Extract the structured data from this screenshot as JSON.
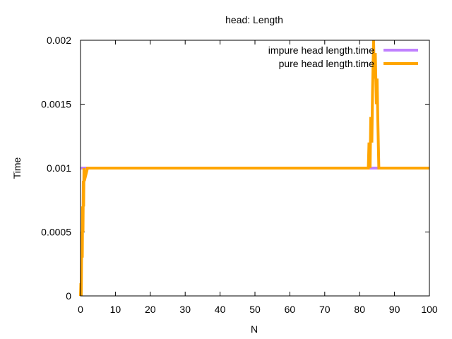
{
  "chart_data": {
    "type": "line",
    "title": "head: Length",
    "xlabel": "N",
    "ylabel": "Time",
    "xlim": [
      0,
      100
    ],
    "ylim": [
      0,
      0.002
    ],
    "xticks": [
      0,
      10,
      20,
      30,
      40,
      50,
      60,
      70,
      80,
      90,
      100
    ],
    "xtick_labels": [
      "0",
      "10",
      "20",
      "30",
      "40",
      "50",
      "60",
      "70",
      "80",
      "90",
      "100"
    ],
    "yticks": [
      0,
      0.0005,
      0.001,
      0.0015,
      0.002
    ],
    "ytick_labels": [
      "0",
      "0.0005",
      "0.001",
      "0.0015",
      "0.002"
    ],
    "grid": false,
    "legend_position": "top-right",
    "series": [
      {
        "name": "impure head length.time",
        "color": "#c080ff",
        "x": [
          0,
          1,
          2,
          100
        ],
        "y": [
          0.001,
          0.001,
          0.001,
          0.001
        ]
      },
      {
        "name": "pure head length.time",
        "color": "#ffa500",
        "x": [
          0,
          0.1,
          0.2,
          0.3,
          0.4,
          0.5,
          0.6,
          0.7,
          0.8,
          0.9,
          1.0,
          1.1,
          2,
          10,
          20,
          30,
          40,
          50,
          60,
          70,
          80,
          82,
          82.5,
          82.7,
          83.0,
          83.2,
          83.5,
          83.7,
          84.0,
          84.2,
          84.5,
          84.8,
          85.0,
          85.2,
          85.5,
          86,
          90,
          100
        ],
        "y": [
          0,
          0.0001,
          0,
          0.0003,
          0.0005,
          0.0003,
          0.0007,
          0.0005,
          0.0009,
          0.0007,
          0.001,
          0.0009,
          0.001,
          0.001,
          0.001,
          0.001,
          0.001,
          0.001,
          0.001,
          0.001,
          0.001,
          0.001,
          0.001,
          0.0012,
          0.001,
          0.0014,
          0.0012,
          0.0016,
          0.002,
          0.0017,
          0.0019,
          0.0015,
          0.0017,
          0.0014,
          0.001,
          0.001,
          0.001,
          0.001
        ]
      }
    ]
  }
}
